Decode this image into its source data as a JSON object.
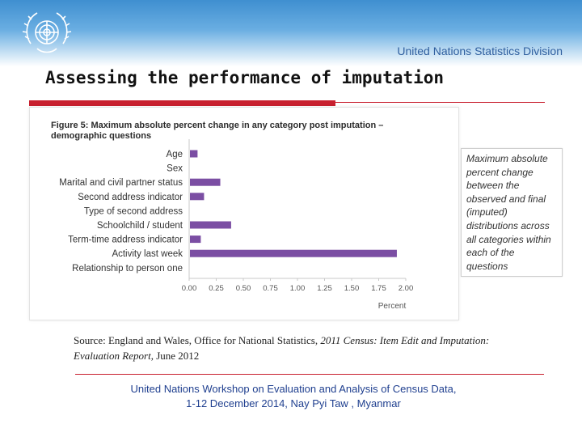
{
  "header": {
    "org_name": "United Nations Statistics Division",
    "logo_icon": "un-emblem-icon"
  },
  "slide": {
    "title": "Assessing the performance of imputation"
  },
  "figure": {
    "title_line1": "Figure 5: Maximum absolute percent change in any category post imputation –",
    "title_line2": "demographic questions"
  },
  "chart_data": {
    "type": "bar",
    "orientation": "horizontal",
    "categories": [
      "Age",
      "Sex",
      "Marital and civil partner status",
      "Second address indicator",
      "Type of second address",
      "Schoolchild / student",
      "Term-time address indicator",
      "Activity last week",
      "Relationship to person one"
    ],
    "values": [
      0.07,
      0.0,
      0.28,
      0.13,
      0.0,
      0.38,
      0.1,
      1.91,
      0.0
    ],
    "xlabel": "Percent",
    "xlim": [
      0,
      2.0
    ],
    "xticks": [
      "0.00",
      "0.25",
      "0.50",
      "0.75",
      "1.00",
      "1.25",
      "1.50",
      "1.75",
      "2.00"
    ],
    "bar_color": "#7b4ea3",
    "grid": false
  },
  "note": {
    "text": "Maximum absolute percent change between the observed and final (imputed) distributions across all categories within each of the questions"
  },
  "source": {
    "prefix": "Source: England and Wales, Office for National Statistics, ",
    "title": "2011 Census: Item Edit and Imputation: Evaluation Report",
    "suffix": ", June 2012"
  },
  "footer": {
    "line1": "United Nations Workshop on  Evaluation and Analysis of Census Data,",
    "line2": "1-12 December 2014,  Nay Pyi Taw , Myanmar"
  }
}
